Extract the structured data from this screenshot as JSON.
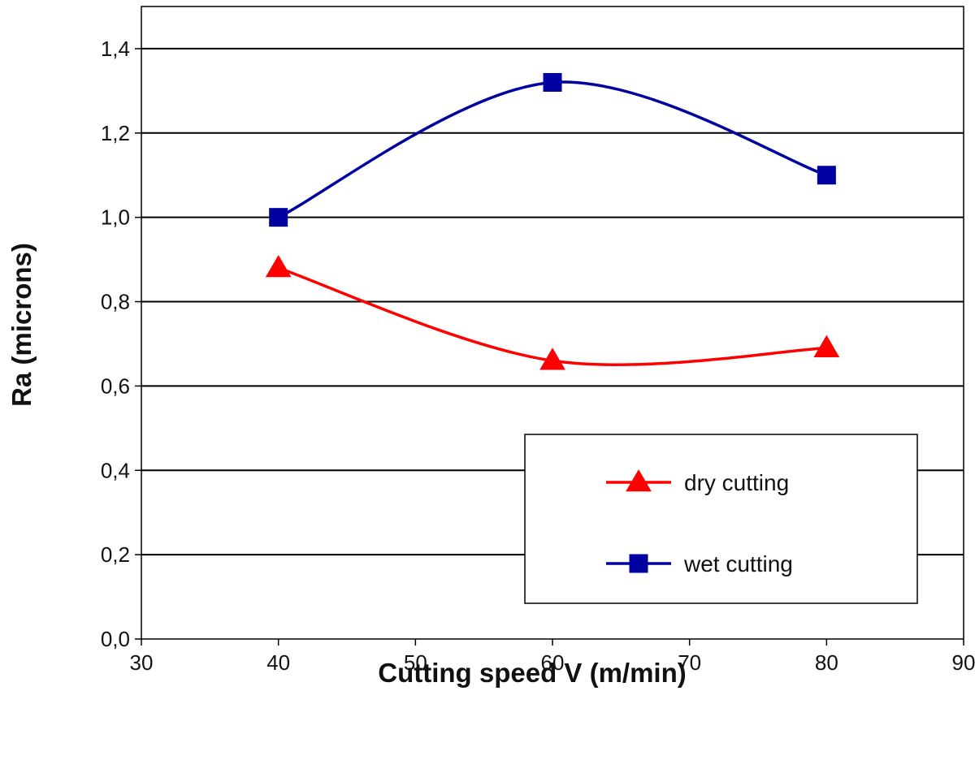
{
  "chart_data": {
    "type": "line",
    "xlabel": "Cutting speed V (m/min)",
    "ylabel": "Ra (microns)",
    "xlim": [
      30,
      90
    ],
    "ylim": [
      0,
      1.5
    ],
    "x_ticks": [
      "30",
      "40",
      "50",
      "60",
      "70",
      "80",
      "90"
    ],
    "y_ticks": [
      "0,0",
      "0,2",
      "0,4",
      "0,6",
      "0,8",
      "1,0",
      "1,2",
      "1,4"
    ],
    "grid": "horizontal",
    "legend_position": "lower-right",
    "series": [
      {
        "name": "dry cutting",
        "color": "#ff0000",
        "marker": "triangle",
        "x": [
          40,
          60,
          80
        ],
        "y": [
          0.88,
          0.66,
          0.69
        ]
      },
      {
        "name": "wet cutting",
        "color": "#0000a0",
        "marker": "square",
        "x": [
          40,
          60,
          80
        ],
        "y": [
          1.0,
          1.32,
          1.1
        ]
      }
    ]
  }
}
